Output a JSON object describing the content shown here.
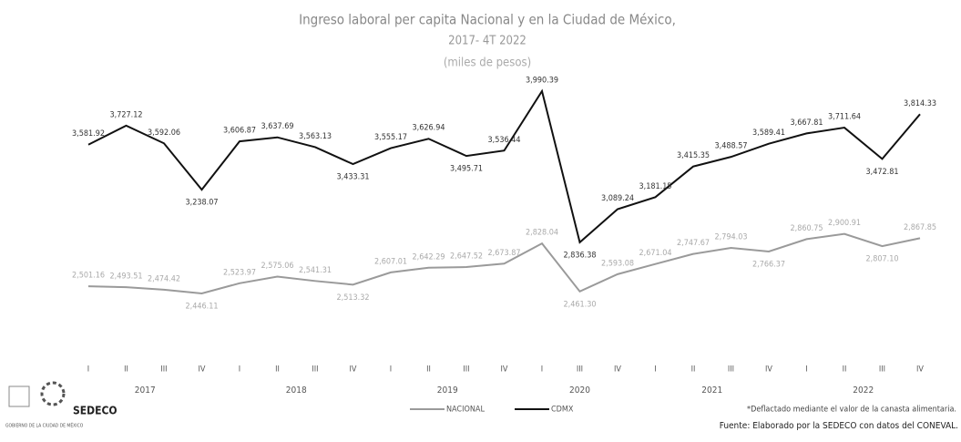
{
  "chart_data": {
    "type": "line",
    "title": "Ingreso laboral per capita Nacional y en la Ciudad de México,",
    "subtitle": "2017- 4T 2022",
    "unit_note": "(miles de pesos)",
    "categories": [
      "I",
      "II",
      "III",
      "IV",
      "I",
      "II",
      "III",
      "IV",
      "I",
      "II",
      "III",
      "IV",
      "I",
      "III",
      "IV",
      "I",
      "II",
      "III",
      "IV",
      "I",
      "II",
      "III",
      "IV"
    ],
    "years": [
      {
        "label": "2017",
        "start": 0,
        "end": 3
      },
      {
        "label": "2018",
        "start": 4,
        "end": 7
      },
      {
        "label": "2019",
        "start": 8,
        "end": 11
      },
      {
        "label": "2020",
        "start": 12,
        "end": 14
      },
      {
        "label": "2021",
        "start": 15,
        "end": 18
      },
      {
        "label": "2022",
        "start": 19,
        "end": 22
      }
    ],
    "series": [
      {
        "name": "NACIONAL",
        "color": "#9a9a9a",
        "values": [
          2501.16,
          2493.51,
          2474.42,
          2446.11,
          2523.97,
          2575.06,
          2541.31,
          2513.32,
          2607.01,
          2642.29,
          2647.52,
          2673.87,
          2828.04,
          2461.3,
          2593.08,
          2671.04,
          2747.67,
          2794.03,
          2766.37,
          2860.75,
          2900.91,
          2807.1,
          2867.85
        ],
        "value_labels": [
          "2,501.16",
          "2,493.51",
          "2,474.42",
          "2,446.11",
          "2,523.97",
          "2,575.06",
          "2,541.31",
          "2,513.32",
          "2,607.01",
          "2,642.29",
          "2,647.52",
          "2,673.87",
          "2,828.04",
          "2,461.30",
          "2,593.08",
          "2,671.04",
          "2,747.67",
          "2,794.03",
          "2,766.37",
          "2,860.75",
          "2,900.91",
          "2,807.10",
          "2,867.85"
        ]
      },
      {
        "name": "CDMX",
        "color": "#111111",
        "values": [
          3581.92,
          3727.12,
          3592.06,
          3238.07,
          3606.87,
          3637.69,
          3563.13,
          3433.31,
          3555.17,
          3626.94,
          3495.71,
          3536.44,
          3990.39,
          2836.38,
          3089.24,
          3181.15,
          3415.35,
          3488.57,
          3589.41,
          3667.81,
          3711.64,
          3472.81,
          3814.33
        ],
        "value_labels": [
          "3,581.92",
          "3,727.12",
          "3,592.06",
          "3,238.07",
          "3,606.87",
          "3,637.69",
          "3,563.13",
          "3,433.31",
          "3,555.17",
          "3,626.94",
          "3,495.71",
          "3,536.44",
          "3,990.39",
          "2,836.38",
          "3,089.24",
          "3,181.15",
          "3,415.35",
          "3,488.57",
          "3,589.41",
          "3,667.81",
          "3,711.64",
          "3,472.81",
          "3,814.33"
        ]
      }
    ],
    "legend": "bottom",
    "footnote": "*Deflactado mediante el valor de la canasta alimentaria.",
    "source": "Fuente: Elaborado por la SEDECO con datos del CONEVAL.",
    "logo_text": "SEDECO",
    "logo_gov": "GOBIERNO DE LA CIUDAD DE MÉXICO"
  }
}
